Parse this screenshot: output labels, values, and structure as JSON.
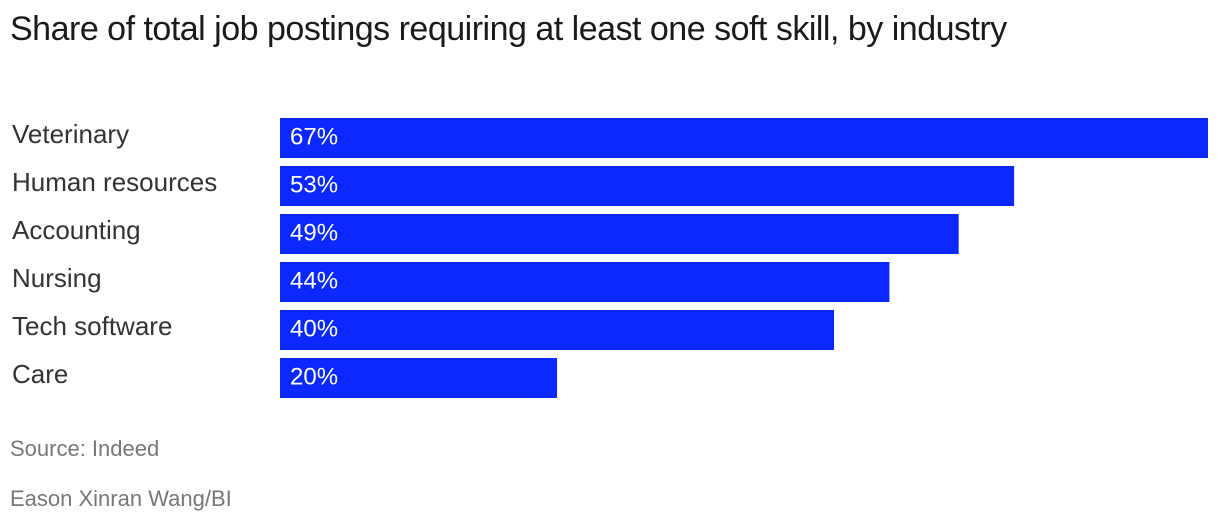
{
  "chart_data": {
    "type": "bar",
    "orientation": "horizontal",
    "title": "Share of total job postings requiring at least one soft skill, by industry",
    "categories": [
      "Veterinary",
      "Human resources",
      "Accounting",
      "Nursing",
      "Tech software",
      "Care"
    ],
    "values": [
      67,
      53,
      49,
      44,
      40,
      20
    ],
    "value_labels": [
      "67%",
      "53%",
      "49%",
      "44%",
      "40%",
      "20%"
    ],
    "color": "#0a28ff",
    "source": "Source: Indeed",
    "credit": "Eason Xinran Wang/BI"
  }
}
